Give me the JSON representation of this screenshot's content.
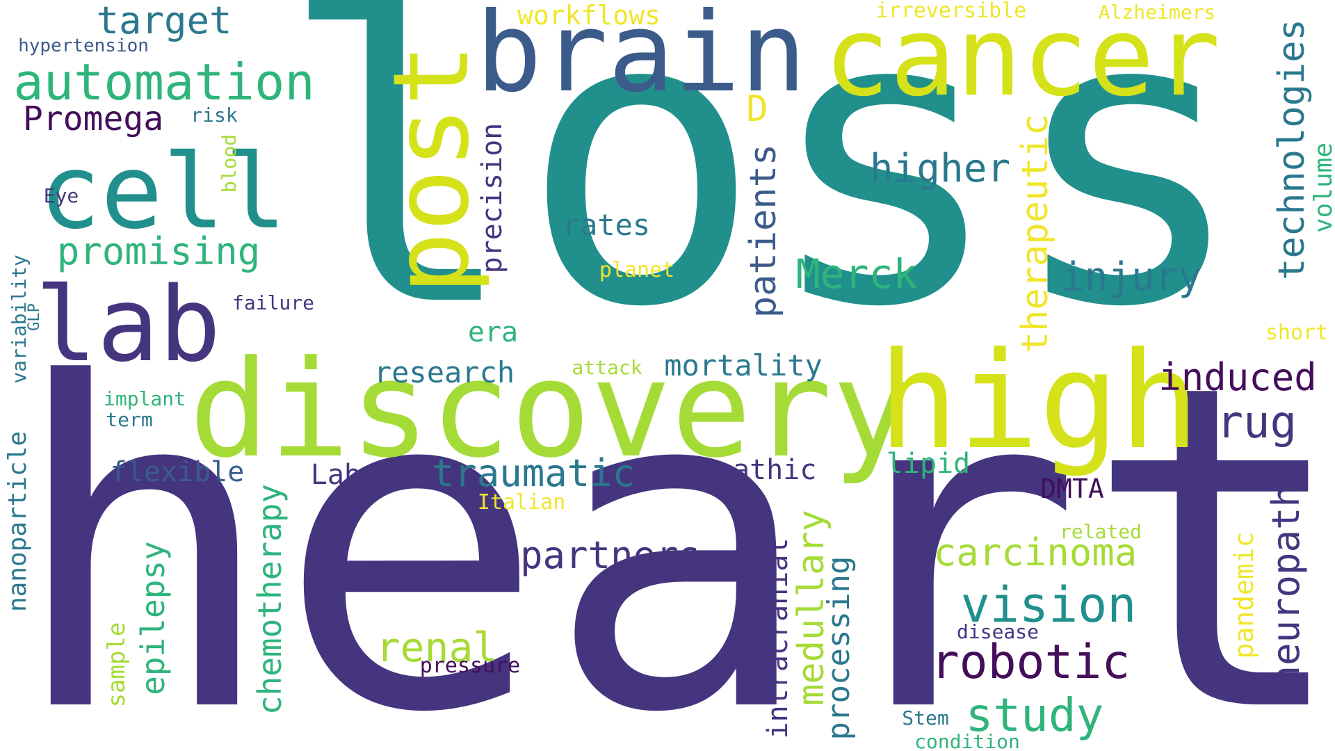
{
  "words": [
    {
      "id": "loss",
      "text": "loss"
    },
    {
      "id": "heart",
      "text": "heart"
    },
    {
      "id": "discovery",
      "text": "discovery"
    },
    {
      "id": "high",
      "text": "high"
    },
    {
      "id": "brain",
      "text": "brain"
    },
    {
      "id": "cancer",
      "text": "cancer"
    },
    {
      "id": "post",
      "text": "post"
    },
    {
      "id": "cell",
      "text": "cell"
    },
    {
      "id": "lab",
      "text": "lab"
    },
    {
      "id": "automation",
      "text": "automation"
    },
    {
      "id": "target",
      "text": "target"
    },
    {
      "id": "hypertension",
      "text": "hypertension"
    },
    {
      "id": "Promega",
      "text": "Promega"
    },
    {
      "id": "risk",
      "text": "risk"
    },
    {
      "id": "blood",
      "text": "blood"
    },
    {
      "id": "Eye",
      "text": "Eye"
    },
    {
      "id": "promising",
      "text": "promising"
    },
    {
      "id": "variability",
      "text": "variability"
    },
    {
      "id": "GLP",
      "text": "GLP"
    },
    {
      "id": "failure",
      "text": "failure"
    },
    {
      "id": "workflows",
      "text": "workflows"
    },
    {
      "id": "irreversible",
      "text": "irreversible"
    },
    {
      "id": "Alzheimers",
      "text": "Alzheimers"
    },
    {
      "id": "technologies",
      "text": "technologies"
    },
    {
      "id": "volume",
      "text": "volume"
    },
    {
      "id": "D",
      "text": "D"
    },
    {
      "id": "higher",
      "text": "higher"
    },
    {
      "id": "precision",
      "text": "precision"
    },
    {
      "id": "rates",
      "text": "rates"
    },
    {
      "id": "planet",
      "text": "planet"
    },
    {
      "id": "patients",
      "text": "patients"
    },
    {
      "id": "Merck",
      "text": "Merck"
    },
    {
      "id": "therapeutic",
      "text": "therapeutic"
    },
    {
      "id": "injury",
      "text": "injury"
    },
    {
      "id": "era",
      "text": "era"
    },
    {
      "id": "short",
      "text": "short"
    },
    {
      "id": "research",
      "text": "research"
    },
    {
      "id": "attack",
      "text": "attack"
    },
    {
      "id": "mortality",
      "text": "mortality"
    },
    {
      "id": "induced",
      "text": "induced"
    },
    {
      "id": "drug",
      "text": "drug"
    },
    {
      "id": "implant",
      "text": "implant"
    },
    {
      "id": "term",
      "text": "term"
    },
    {
      "id": "nanoparticle",
      "text": "nanoparticle"
    },
    {
      "id": "flexible",
      "text": "flexible"
    },
    {
      "id": "Labman",
      "text": "Labman"
    },
    {
      "id": "traumatic",
      "text": "traumatic"
    },
    {
      "id": "idiopathic",
      "text": "idiopathic"
    },
    {
      "id": "lipid",
      "text": "lipid"
    },
    {
      "id": "DMTA",
      "text": "DMTA"
    },
    {
      "id": "Italian",
      "text": "Italian"
    },
    {
      "id": "chemotherapy",
      "text": "chemotherapy"
    },
    {
      "id": "epilepsy",
      "text": "epilepsy"
    },
    {
      "id": "sample",
      "text": "sample"
    },
    {
      "id": "partners",
      "text": "partners"
    },
    {
      "id": "carcinoma",
      "text": "carcinoma"
    },
    {
      "id": "related",
      "text": "related"
    },
    {
      "id": "neuropathy",
      "text": "neuropathy"
    },
    {
      "id": "pandemic",
      "text": "pandemic"
    },
    {
      "id": "vision",
      "text": "vision"
    },
    {
      "id": "intracranial",
      "text": "intracranial"
    },
    {
      "id": "medullary",
      "text": "medullary"
    },
    {
      "id": "processing",
      "text": "processing"
    },
    {
      "id": "renal",
      "text": "renal"
    },
    {
      "id": "pressure",
      "text": "pressure"
    },
    {
      "id": "robotic",
      "text": "robotic"
    },
    {
      "id": "disease",
      "text": "disease"
    },
    {
      "id": "study",
      "text": "study"
    },
    {
      "id": "Stem",
      "text": "Stem"
    },
    {
      "id": "condition",
      "text": "condition"
    }
  ],
  "colors": {
    "purple": "#45357f",
    "navy": "#3b5b8a",
    "teal": "#21908c",
    "teal2": "#2a788e",
    "green": "#2fb47c",
    "light_green": "#a5db36",
    "yellow": "#d5e21a",
    "light_yellow": "#f0e62a",
    "dark_purple": "#440e5a"
  }
}
